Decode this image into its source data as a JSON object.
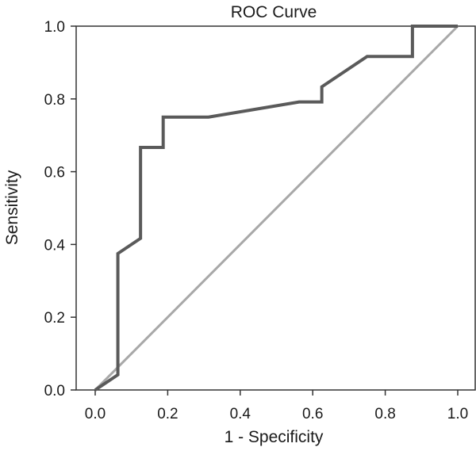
{
  "chart_data": {
    "type": "line",
    "title": "ROC Curve",
    "xlabel": "1 - Specificity",
    "ylabel": "Sensitivity",
    "xlim": [
      0.0,
      1.0
    ],
    "ylim": [
      0.0,
      1.0
    ],
    "x_ticks": [
      "0.0",
      "0.2",
      "0.4",
      "0.6",
      "0.8",
      "1.0"
    ],
    "y_ticks": [
      "0.0",
      "0.2",
      "0.4",
      "0.6",
      "0.8",
      "1.0"
    ],
    "x_tick_values": [
      0.0,
      0.2,
      0.4,
      0.6,
      0.8,
      1.0
    ],
    "y_tick_values": [
      0.0,
      0.2,
      0.4,
      0.6,
      0.8,
      1.0
    ],
    "grid": false,
    "legend": "none",
    "series": [
      {
        "role": "roc-curve",
        "color": "#5a5a5a",
        "x": [
          0.0,
          0.0625,
          0.0625,
          0.0625,
          0.125,
          0.125,
          0.1875,
          0.1875,
          0.3125,
          0.5625,
          0.625,
          0.625,
          0.75,
          0.875,
          0.875,
          1.0
        ],
        "y": [
          0.0,
          0.0417,
          0.0417,
          0.375,
          0.4167,
          0.6667,
          0.6667,
          0.75,
          0.75,
          0.7917,
          0.7917,
          0.8333,
          0.9167,
          0.9167,
          1.0,
          1.0
        ]
      },
      {
        "role": "reference-line",
        "color": "#a8a8a8",
        "x": [
          0.0,
          1.0
        ],
        "y": [
          0.0,
          1.0
        ]
      }
    ]
  }
}
